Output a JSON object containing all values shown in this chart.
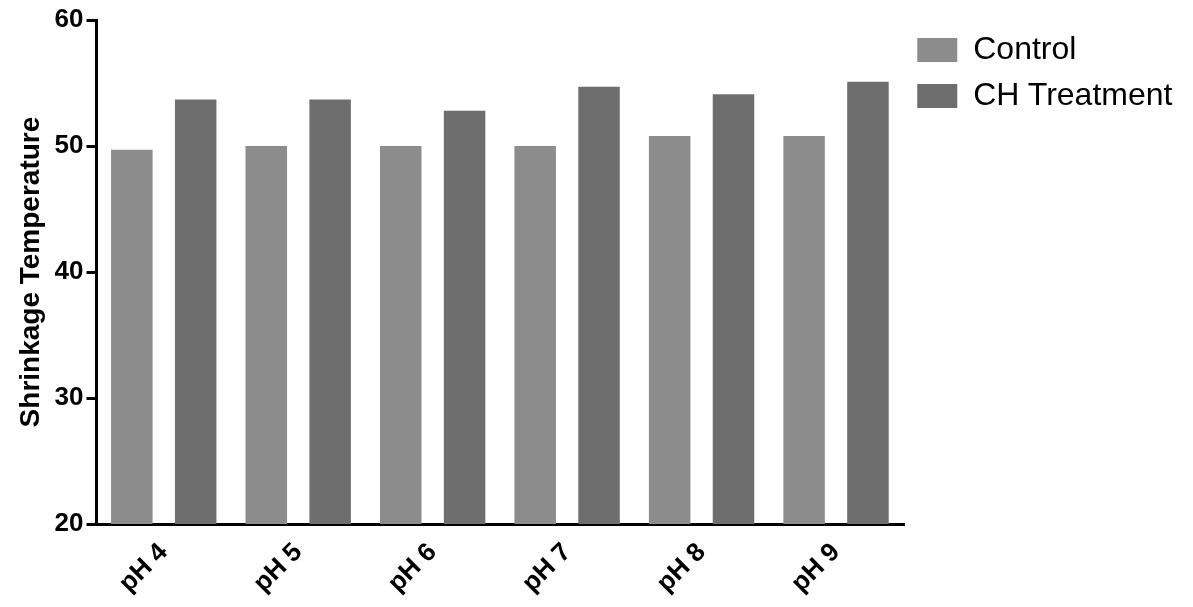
{
  "chart_data": {
    "type": "bar",
    "ylabel": "Shrinkage Temperature",
    "categories": [
      "pH 4",
      "pH 5",
      "pH 6",
      "pH 7",
      "pH 8",
      "pH 9"
    ],
    "series": [
      {
        "name": "Control",
        "color": "#8c8c8c",
        "values": [
          49.7,
          50,
          50,
          50,
          50.8,
          50.8
        ]
      },
      {
        "name": "CH Treatment",
        "color": "#6e6e6e",
        "values": [
          53.7,
          53.7,
          52.8,
          54.7,
          54.1,
          55.1
        ]
      }
    ],
    "ylim": [
      20,
      60
    ],
    "yticks": [
      20,
      30,
      40,
      50,
      60
    ],
    "grid": false,
    "legend": "top right"
  }
}
